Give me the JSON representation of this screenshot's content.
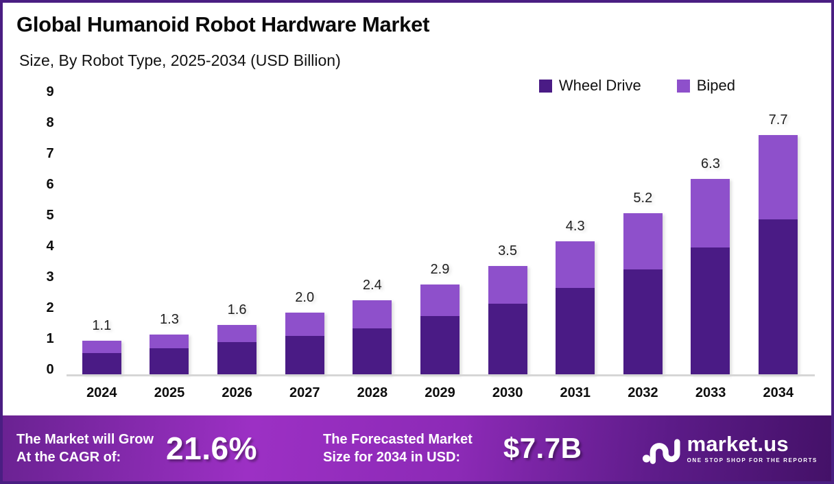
{
  "header": {
    "title": "Global Humanoid Robot Hardware Market",
    "subtitle": "Size, By Robot Type, 2025-2034 (USD Billion)"
  },
  "legend": {
    "items": [
      {
        "label": "Wheel Drive",
        "color": "#4A1B85"
      },
      {
        "label": "Biped",
        "color": "#8E50CB"
      }
    ]
  },
  "chart_data": {
    "type": "bar",
    "stacked": true,
    "title": "Global Humanoid Robot Hardware Market Size, By Robot Type, 2025-2034 (USD Billion)",
    "categories": [
      "2024",
      "2025",
      "2026",
      "2027",
      "2028",
      "2029",
      "2030",
      "2031",
      "2032",
      "2033",
      "2034"
    ],
    "series": [
      {
        "name": "Wheel Drive",
        "color": "#4A1B85",
        "values": [
          0.7,
          0.85,
          1.05,
          1.25,
          1.5,
          1.9,
          2.3,
          2.8,
          3.4,
          4.1,
          5.0
        ]
      },
      {
        "name": "Biped",
        "color": "#8E50CB",
        "values": [
          0.4,
          0.45,
          0.55,
          0.75,
          0.9,
          1.0,
          1.2,
          1.5,
          1.8,
          2.2,
          2.7
        ]
      }
    ],
    "totals": [
      1.1,
      1.3,
      1.6,
      2.0,
      2.4,
      2.9,
      3.5,
      4.3,
      5.2,
      6.3,
      7.7
    ],
    "total_labels": [
      "1.1",
      "1.3",
      "1.6",
      "2.0",
      "2.4",
      "2.9",
      "3.5",
      "4.3",
      "5.2",
      "6.3",
      "7.7"
    ],
    "xlabel": "",
    "ylabel": "",
    "ylim": [
      0,
      9
    ],
    "yticks": [
      0,
      1,
      2,
      3,
      4,
      5,
      6,
      7,
      8,
      9
    ],
    "grid": false,
    "legend_position": "top-right"
  },
  "banner": {
    "cagr_label_line1": "The Market will Grow",
    "cagr_label_line2": "At the CAGR of:",
    "cagr_value": "21.6%",
    "forecast_label_line1": "The Forecasted Market",
    "forecast_label_line2": "Size for 2034 in USD:",
    "forecast_value": "$7.7B",
    "logo_name": "market.us",
    "logo_tagline": "ONE STOP SHOP FOR THE REPORTS"
  },
  "colors": {
    "page_border": "#4A1E82",
    "baseline": "#d6d6d6",
    "banner_gradient_left": "#9c30c4",
    "banner_gradient_right": "#441168",
    "text_dark": "#0a0a0a",
    "text_white": "#ffffff"
  }
}
